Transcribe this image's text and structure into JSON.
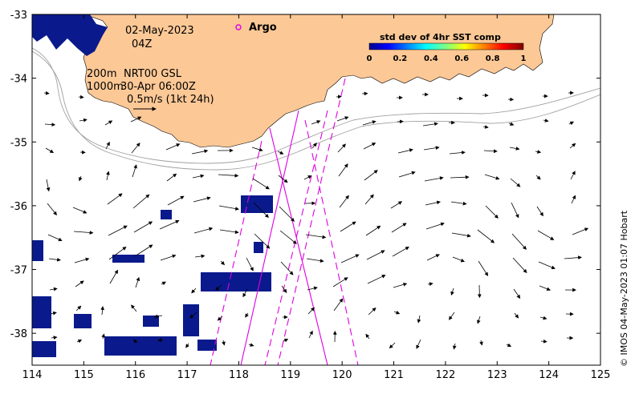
{
  "map": {
    "lon_range": [
      114,
      125
    ],
    "lat_range": [
      -38.5,
      -33
    ],
    "lon_ticks": [
      "114",
      "115",
      "116",
      "117",
      "118",
      "119",
      "120",
      "121",
      "122",
      "123",
      "124",
      "125"
    ],
    "lat_ticks": [
      "-33",
      "-34",
      "-35",
      "-36",
      "-37",
      "-38"
    ],
    "land_color": "#fcc896",
    "sst_patch_color": "#0a1a8c"
  },
  "annotations": {
    "date": "02-May-2023",
    "hour": "04Z",
    "depth_200": "200m",
    "source": "NRT00 GSL",
    "depth_1000": "1000m",
    "valid_time": "30-Apr 06:00Z",
    "scale": "0.5m/s (1kt 24h)",
    "argo_label": "Argo"
  },
  "colorbar": {
    "title": "std dev of 4hr SST comp",
    "ticks": [
      "0",
      "0.2",
      "0.4",
      "0.6",
      "0.8",
      "1"
    ]
  },
  "credit": "© IMOS 04-May-2023 01:07 Hobart"
}
